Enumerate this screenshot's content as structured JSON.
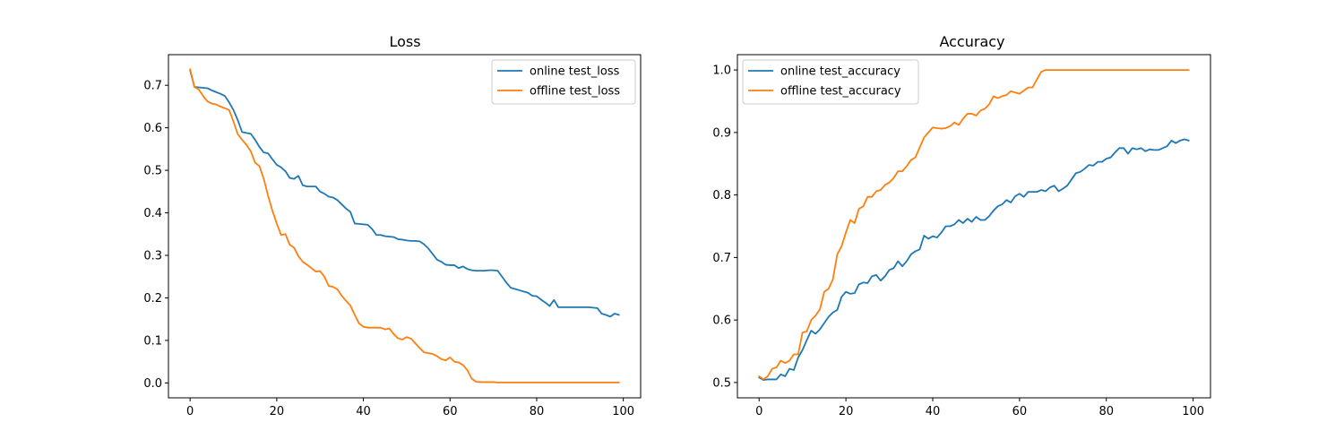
{
  "chart_data": [
    {
      "type": "line",
      "title": "Loss",
      "xlabel": "",
      "ylabel": "",
      "xlim": [
        -5,
        104
      ],
      "ylim": [
        -0.035,
        0.772
      ],
      "xticks": [
        0,
        20,
        40,
        60,
        80,
        100
      ],
      "yticks": [
        0.0,
        0.1,
        0.2,
        0.3,
        0.4,
        0.5,
        0.6,
        0.7
      ],
      "ytick_labels": [
        "0.0",
        "0.1",
        "0.2",
        "0.3",
        "0.4",
        "0.5",
        "0.6",
        "0.7"
      ],
      "grid": false,
      "legend": "top-right",
      "series": [
        {
          "name": "online test_loss",
          "color": "#1f77b4",
          "x": [
            0,
            1,
            2,
            3,
            4,
            5,
            6,
            7,
            8,
            9,
            10,
            11,
            12,
            13,
            14,
            15,
            16,
            17,
            18,
            19,
            20,
            21,
            22,
            23,
            24,
            25,
            26,
            27,
            28,
            29,
            30,
            31,
            32,
            33,
            34,
            35,
            36,
            37,
            38,
            39,
            40,
            41,
            42,
            43,
            44,
            45,
            46,
            47,
            48,
            49,
            50,
            51,
            52,
            53,
            54,
            55,
            56,
            57,
            58,
            59,
            60,
            61,
            62,
            63,
            64,
            65,
            66,
            67,
            68,
            69,
            70,
            71,
            72,
            73,
            74,
            75,
            76,
            77,
            78,
            79,
            80,
            81,
            82,
            83,
            84,
            85,
            86,
            87,
            88,
            89,
            90,
            91,
            92,
            93,
            94,
            95,
            96,
            97,
            98,
            99
          ],
          "y": [
            0.735,
            0.696,
            0.695,
            0.694,
            0.693,
            0.688,
            0.684,
            0.68,
            0.675,
            0.66,
            0.642,
            0.618,
            0.59,
            0.588,
            0.586,
            0.572,
            0.555,
            0.542,
            0.54,
            0.526,
            0.513,
            0.507,
            0.498,
            0.482,
            0.48,
            0.487,
            0.465,
            0.462,
            0.462,
            0.462,
            0.45,
            0.445,
            0.438,
            0.436,
            0.43,
            0.42,
            0.41,
            0.402,
            0.375,
            0.374,
            0.373,
            0.372,
            0.362,
            0.348,
            0.348,
            0.345,
            0.344,
            0.343,
            0.338,
            0.337,
            0.335,
            0.334,
            0.334,
            0.333,
            0.326,
            0.316,
            0.303,
            0.29,
            0.285,
            0.278,
            0.277,
            0.277,
            0.27,
            0.274,
            0.268,
            0.265,
            0.264,
            0.264,
            0.264,
            0.265,
            0.265,
            0.264,
            0.25,
            0.236,
            0.224,
            0.221,
            0.218,
            0.215,
            0.212,
            0.205,
            0.204,
            0.196,
            0.189,
            0.181,
            0.195,
            0.178,
            0.178,
            0.178,
            0.178,
            0.178,
            0.178,
            0.178,
            0.178,
            0.177,
            0.176,
            0.163,
            0.16,
            0.156,
            0.163,
            0.16
          ]
        },
        {
          "name": "offline test_loss",
          "color": "#ff7f0e",
          "x": [
            0,
            1,
            2,
            3,
            4,
            5,
            6,
            7,
            8,
            9,
            10,
            11,
            12,
            13,
            14,
            15,
            16,
            17,
            18,
            19,
            20,
            21,
            22,
            23,
            24,
            25,
            26,
            27,
            28,
            29,
            30,
            31,
            32,
            33,
            34,
            35,
            36,
            37,
            38,
            39,
            40,
            41,
            42,
            43,
            44,
            45,
            46,
            47,
            48,
            49,
            50,
            51,
            52,
            53,
            54,
            55,
            56,
            57,
            58,
            59,
            60,
            61,
            62,
            63,
            64,
            65,
            66,
            67,
            68,
            69,
            70,
            71,
            72,
            73,
            74,
            75,
            76,
            77,
            78,
            79,
            80,
            81,
            82,
            83,
            84,
            85,
            86,
            87,
            88,
            89,
            90,
            91,
            92,
            93,
            94,
            95,
            96,
            97,
            98,
            99
          ],
          "y": [
            0.738,
            0.696,
            0.69,
            0.675,
            0.662,
            0.657,
            0.655,
            0.65,
            0.646,
            0.642,
            0.615,
            0.585,
            0.572,
            0.56,
            0.545,
            0.518,
            0.51,
            0.48,
            0.44,
            0.405,
            0.375,
            0.348,
            0.35,
            0.325,
            0.318,
            0.298,
            0.285,
            0.278,
            0.27,
            0.262,
            0.263,
            0.25,
            0.228,
            0.226,
            0.22,
            0.205,
            0.193,
            0.182,
            0.16,
            0.14,
            0.132,
            0.13,
            0.13,
            0.13,
            0.13,
            0.126,
            0.128,
            0.115,
            0.105,
            0.102,
            0.108,
            0.104,
            0.093,
            0.082,
            0.072,
            0.07,
            0.068,
            0.063,
            0.056,
            0.053,
            0.06,
            0.05,
            0.048,
            0.042,
            0.03,
            0.01,
            0.003,
            0.002,
            0.002,
            0.002,
            0.002,
            0.001,
            0.001,
            0.001,
            0.001,
            0.001,
            0.001,
            0.001,
            0.001,
            0.001,
            0.001,
            0.001,
            0.001,
            0.001,
            0.001,
            0.001,
            0.001,
            0.001,
            0.001,
            0.001,
            0.001,
            0.001,
            0.001,
            0.001,
            0.001,
            0.001,
            0.001,
            0.001,
            0.001,
            0.001
          ]
        }
      ]
    },
    {
      "type": "line",
      "title": "Accuracy",
      "xlabel": "",
      "ylabel": "",
      "xlim": [
        -5,
        104
      ],
      "ylim": [
        0.4755,
        1.0245
      ],
      "xticks": [
        0,
        20,
        40,
        60,
        80,
        100
      ],
      "yticks": [
        0.5,
        0.6,
        0.7,
        0.8,
        0.9,
        1.0
      ],
      "ytick_labels": [
        "0.5",
        "0.6",
        "0.7",
        "0.8",
        "0.9",
        "1.0"
      ],
      "grid": false,
      "legend": "top-left",
      "series": [
        {
          "name": "online test_accuracy",
          "color": "#1f77b4",
          "x": [
            0,
            1,
            2,
            3,
            4,
            5,
            6,
            7,
            8,
            9,
            10,
            11,
            12,
            13,
            14,
            15,
            16,
            17,
            18,
            19,
            20,
            21,
            22,
            23,
            24,
            25,
            26,
            27,
            28,
            29,
            30,
            31,
            32,
            33,
            34,
            35,
            36,
            37,
            38,
            39,
            40,
            41,
            42,
            43,
            44,
            45,
            46,
            47,
            48,
            49,
            50,
            51,
            52,
            53,
            54,
            55,
            56,
            57,
            58,
            59,
            60,
            61,
            62,
            63,
            64,
            65,
            66,
            67,
            68,
            69,
            70,
            71,
            72,
            73,
            74,
            75,
            76,
            77,
            78,
            79,
            80,
            81,
            82,
            83,
            84,
            85,
            86,
            87,
            88,
            89,
            90,
            91,
            92,
            93,
            94,
            95,
            96,
            97,
            98,
            99
          ],
          "y": [
            0.508,
            0.504,
            0.505,
            0.505,
            0.505,
            0.513,
            0.51,
            0.522,
            0.52,
            0.54,
            0.552,
            0.568,
            0.583,
            0.578,
            0.585,
            0.595,
            0.605,
            0.612,
            0.616,
            0.637,
            0.645,
            0.642,
            0.643,
            0.657,
            0.66,
            0.659,
            0.67,
            0.672,
            0.663,
            0.67,
            0.68,
            0.683,
            0.694,
            0.686,
            0.694,
            0.705,
            0.71,
            0.713,
            0.735,
            0.73,
            0.734,
            0.732,
            0.74,
            0.75,
            0.75,
            0.753,
            0.76,
            0.755,
            0.762,
            0.757,
            0.765,
            0.76,
            0.76,
            0.766,
            0.775,
            0.782,
            0.785,
            0.792,
            0.788,
            0.798,
            0.802,
            0.797,
            0.805,
            0.805,
            0.805,
            0.808,
            0.806,
            0.812,
            0.815,
            0.806,
            0.81,
            0.815,
            0.825,
            0.835,
            0.837,
            0.842,
            0.848,
            0.847,
            0.853,
            0.853,
            0.858,
            0.86,
            0.868,
            0.875,
            0.875,
            0.866,
            0.875,
            0.873,
            0.875,
            0.87,
            0.873,
            0.872,
            0.872,
            0.875,
            0.878,
            0.887,
            0.883,
            0.887,
            0.889,
            0.887
          ]
        },
        {
          "name": "offline test_accuracy",
          "color": "#ff7f0e",
          "x": [
            0,
            1,
            2,
            3,
            4,
            5,
            6,
            7,
            8,
            9,
            10,
            11,
            12,
            13,
            14,
            15,
            16,
            17,
            18,
            19,
            20,
            21,
            22,
            23,
            24,
            25,
            26,
            27,
            28,
            29,
            30,
            31,
            32,
            33,
            34,
            35,
            36,
            37,
            38,
            39,
            40,
            41,
            42,
            43,
            44,
            45,
            46,
            47,
            48,
            49,
            50,
            51,
            52,
            53,
            54,
            55,
            56,
            57,
            58,
            59,
            60,
            61,
            62,
            63,
            64,
            65,
            66,
            67,
            68,
            69,
            70,
            71,
            72,
            73,
            74,
            75,
            76,
            77,
            78,
            79,
            80,
            81,
            82,
            83,
            84,
            85,
            86,
            87,
            88,
            89,
            90,
            91,
            92,
            93,
            94,
            95,
            96,
            97,
            98,
            99
          ],
          "y": [
            0.51,
            0.505,
            0.51,
            0.522,
            0.524,
            0.535,
            0.531,
            0.535,
            0.545,
            0.545,
            0.58,
            0.582,
            0.6,
            0.607,
            0.617,
            0.645,
            0.65,
            0.665,
            0.705,
            0.718,
            0.74,
            0.76,
            0.755,
            0.778,
            0.782,
            0.797,
            0.797,
            0.806,
            0.808,
            0.816,
            0.82,
            0.827,
            0.838,
            0.838,
            0.846,
            0.856,
            0.86,
            0.876,
            0.892,
            0.9,
            0.908,
            0.907,
            0.906,
            0.907,
            0.91,
            0.916,
            0.912,
            0.922,
            0.93,
            0.93,
            0.927,
            0.935,
            0.938,
            0.945,
            0.958,
            0.955,
            0.958,
            0.96,
            0.966,
            0.964,
            0.962,
            0.967,
            0.972,
            0.972,
            0.985,
            0.997,
            1.0,
            1.0,
            1.0,
            1.0,
            1.0,
            1.0,
            1.0,
            1.0,
            1.0,
            1.0,
            1.0,
            1.0,
            1.0,
            1.0,
            1.0,
            1.0,
            1.0,
            1.0,
            1.0,
            1.0,
            1.0,
            1.0,
            1.0,
            1.0,
            1.0,
            1.0,
            1.0,
            1.0,
            1.0,
            1.0,
            1.0,
            1.0,
            1.0,
            1.0
          ]
        }
      ]
    }
  ]
}
